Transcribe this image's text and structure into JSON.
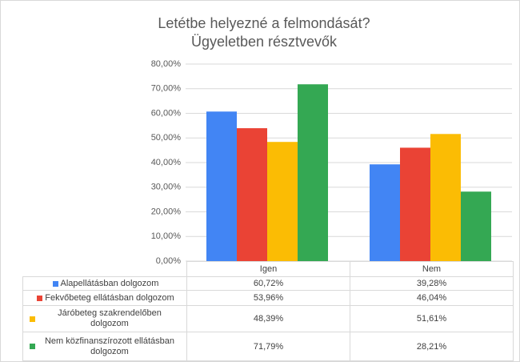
{
  "chart_data": {
    "type": "bar",
    "title": "Letétbe helyezné a felmondását?",
    "subtitle": "Ügyeletben résztvevők",
    "categories": [
      "Igen",
      "Nem"
    ],
    "series": [
      {
        "name": "Alapellátásban dolgozom",
        "color": "#4285f4",
        "values": [
          60.72,
          39.28
        ],
        "value_labels": [
          "60,72%",
          "39,28%"
        ]
      },
      {
        "name": "Fekvőbeteg ellátásban dolgozom",
        "color": "#ea4335",
        "values": [
          53.96,
          46.04
        ],
        "value_labels": [
          "53,96%",
          "46,04%"
        ]
      },
      {
        "name": "Járóbeteg szakrendelőben dolgozom",
        "color": "#fbbc04",
        "values": [
          48.39,
          51.61
        ],
        "value_labels": [
          "48,39%",
          "51,61%"
        ]
      },
      {
        "name": "Nem közfinanszírozott ellátásban dolgozom",
        "color": "#34a853",
        "values": [
          71.79,
          28.21
        ],
        "value_labels": [
          "71,79%",
          "28,21%"
        ]
      }
    ],
    "ylim": [
      0,
      80
    ],
    "yticks": [
      {
        "value": 0,
        "label": "0,00%"
      },
      {
        "value": 10,
        "label": "10,00%"
      },
      {
        "value": 20,
        "label": "20,00%"
      },
      {
        "value": 30,
        "label": "30,00%"
      },
      {
        "value": 40,
        "label": "40,00%"
      },
      {
        "value": 50,
        "label": "50,00%"
      },
      {
        "value": 60,
        "label": "60,00%"
      },
      {
        "value": 70,
        "label": "70,00%"
      },
      {
        "value": 80,
        "label": "80,00%"
      }
    ],
    "grid": true
  }
}
